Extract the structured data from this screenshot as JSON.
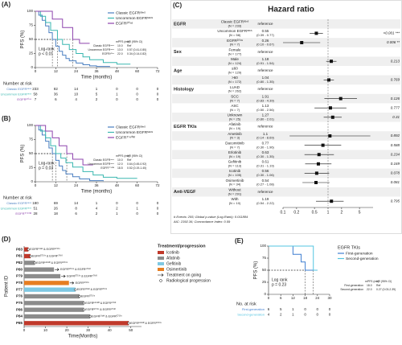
{
  "chart_data": [
    {
      "type": "km",
      "panel": "(A)",
      "ylabel": "PFS (%)",
      "xlabel": "Time (months)",
      "xlim": [
        0,
        72
      ],
      "xticks": [
        0,
        12,
        24,
        36,
        48,
        60,
        72
      ],
      "ylim": [
        0,
        100
      ],
      "yticks": [
        0,
        25,
        50,
        75,
        100
      ],
      "legend": "upper right",
      "median_level": 50,
      "annotation": [
        "Log-rank",
        "p < 0.01"
      ],
      "table_columns": [
        "mPFS (mo)",
        "HR (95% CI)"
      ],
      "risk_title": "Number at risk",
      "series": [
        {
          "name": "Classic EGFRˢᵉⁿˢ",
          "color": "#4a7fc1",
          "x": [
            0,
            2,
            4,
            6,
            8,
            10,
            12,
            14,
            16,
            18,
            20,
            24,
            28,
            32,
            36,
            44
          ],
          "values": [
            100,
            93,
            84,
            74,
            62,
            50,
            38,
            29,
            22,
            16,
            12,
            8,
            5,
            3,
            2,
            2
          ],
          "median": {
            "value": 10,
            "label": "10.0"
          },
          "hr": "Ref",
          "at_risk": [
            233,
            82,
            14,
            1,
            0,
            0,
            0
          ]
        },
        {
          "name": "Uncommon EGFRˢᵉⁿˢ",
          "color": "#3ab7b0",
          "x": [
            0,
            3,
            6,
            9,
            13,
            16,
            20,
            24,
            28,
            32,
            40,
            48,
            56
          ],
          "values": [
            100,
            91,
            80,
            66,
            50,
            41,
            32,
            25,
            19,
            14,
            9,
            6,
            6
          ],
          "median": {
            "value": 13,
            "label": "13.0"
          },
          "hr": "0.57 (0.41-0.80)",
          "at_risk": [
            58,
            36,
            10,
            5,
            1,
            0,
            0
          ]
        },
        {
          "name": "EGFR²⁰ⁱⁿˢ",
          "color": "#8e44ad",
          "x": [
            0,
            10,
            16,
            22,
            26,
            32
          ],
          "values": [
            100,
            86,
            71,
            50,
            43,
            43
          ],
          "median": {
            "value": 22,
            "label": "22.0"
          },
          "hr": "0.34 (0.14-0.82)",
          "at_risk": [
            7,
            6,
            4,
            2,
            0,
            0,
            0
          ]
        }
      ]
    },
    {
      "type": "km",
      "panel": "(B)",
      "ylabel": "PFS (%)",
      "xlabel": "Time (months)",
      "xlim": [
        0,
        72
      ],
      "xticks": [
        0,
        12,
        24,
        36,
        48,
        60,
        72
      ],
      "ylim": [
        0,
        100
      ],
      "yticks": [
        0,
        25,
        50,
        75,
        100
      ],
      "legend": "upper right",
      "median_level": 50,
      "annotation": [
        "Log-rank",
        "p = 0.03"
      ],
      "table_columns": [
        "mPFS (mo)",
        "HR (95% CI)"
      ],
      "risk_title": "Number at risk",
      "series": [
        {
          "name": "Classic EGFRˢᵉⁿˢ",
          "color": "#4a7fc1",
          "x": [
            0,
            2,
            4,
            6,
            8,
            10,
            12,
            14,
            16,
            18,
            22,
            26,
            32,
            40
          ],
          "values": [
            100,
            92,
            83,
            72,
            60,
            50,
            38,
            28,
            20,
            14,
            9,
            5,
            2,
            1
          ],
          "median": {
            "value": 10,
            "label": "10.0"
          },
          "hr": "Ref",
          "at_risk": [
            180,
            69,
            14,
            1,
            0,
            0,
            0
          ]
        },
        {
          "name": "Uncommon EGFRˢᵉⁿˢ",
          "color": "#3ab7b0",
          "x": [
            0,
            3,
            6,
            9,
            12,
            15,
            18,
            22,
            28,
            34,
            40,
            48,
            60
          ],
          "values": [
            100,
            90,
            78,
            64,
            50,
            42,
            34,
            26,
            18,
            12,
            8,
            6,
            6
          ],
          "median": {
            "value": 12,
            "label": "12.0"
          },
          "hr": "0.64 (0.45-0.92)",
          "at_risk": [
            51,
            26,
            8,
            4,
            2,
            1,
            0
          ]
        },
        {
          "name": "EGFRᵀ⁷⁹⁰ᴹ",
          "color": "#8e44ad",
          "x": [
            0,
            6,
            10,
            14,
            18.5,
            22,
            28,
            34
          ],
          "values": [
            100,
            90,
            78,
            64,
            50,
            40,
            30,
            30
          ],
          "median": {
            "value": 18.5,
            "label": "18.5"
          },
          "hr": "0.52 (0.19-1.40)",
          "at_risk": [
            28,
            18,
            6,
            2,
            1,
            0,
            0
          ]
        }
      ]
    },
    {
      "type": "forest",
      "panel": "(C)",
      "title": "Hazard ratio",
      "log": true,
      "xlim": [
        0.1,
        10
      ],
      "xticks": [
        0.1,
        0.2,
        0.5,
        1,
        2,
        5
      ],
      "reference_line": 1,
      "footer": [
        "# Events: 255; Global p-value (Log-Rank): 0.011884",
        "AIC: 2392.36; Concordance Index: 0.59"
      ],
      "groups": [
        {
          "name": "EGFR",
          "rows": [
            {
              "label": "Classic EGFRˢᵉⁿˢ",
              "n": "(N = 233)",
              "ref": "reference"
            },
            {
              "label": "Uncommon EGFRˢᵉⁿˢ",
              "n": "(N = 58)",
              "hr": 0.55,
              "ci": [
                0.39,
                0.77
              ],
              "ci_label": "(0.39 - 0.77)",
              "p": "<0.001 ***"
            },
            {
              "label": "EGFR²⁰ⁱⁿˢ",
              "n": "(N = 7)",
              "hr": 0.26,
              "ci": [
                0.1,
                0.67
              ],
              "ci_label": "(0.10 - 0.67)",
              "p": "0.006 **"
            }
          ]
        },
        {
          "name": "Sex",
          "rows": [
            {
              "label": "Female",
              "n": "(N = 177)",
              "ref": "reference"
            },
            {
              "label": "Male",
              "n": "(N = 124)",
              "hr": 1.18,
              "ci": [
                0.91,
                1.54
              ],
              "ci_label": "(0.91 - 1.54)",
              "p": "0.213"
            }
          ]
        },
        {
          "name": "Age",
          "rows": [
            {
              "label": "≤60",
              "n": "(N = 129)",
              "ref": "reference"
            },
            {
              "label": ">60",
              "n": "(N = 172)",
              "hr": 1.04,
              "ci": [
                0.8,
                1.35
              ],
              "ci_label": "(0.80 - 1.35)",
              "p": "0.769"
            }
          ]
        },
        {
          "name": "Histology",
          "rows": [
            {
              "label": "LUAD",
              "n": "(N = 262)",
              "ref": "reference"
            },
            {
              "label": "SCC",
              "n": "(N = 7)",
              "hr": 1.91,
              "ci": [
                0.83,
                4.39
              ],
              "ci_label": "(0.83 - 4.39)",
              "p": "0.126"
            },
            {
              "label": "ASC",
              "n": "(N = 7)",
              "hr": 1.13,
              "ci": [
                0.5,
                2.56
              ],
              "ci_label": "(0.50 - 2.56)",
              "p": "0.777"
            },
            {
              "label": "Unknown",
              "n": "(N = 25)",
              "hr": 1.27,
              "ci": [
                0.8,
                2.01
              ],
              "ci_label": "(0.80 - 2.01)",
              "p": "0.31"
            }
          ]
        },
        {
          "name": "EGFR TKIs",
          "rows": [
            {
              "label": "Afatinib",
              "n": "(N = 19)",
              "ref": "reference"
            },
            {
              "label": "Ametinib",
              "n": "(N = 3)",
              "hr": 1.1,
              "ci": [
                0.14,
                8.69
              ],
              "ci_label": "(0.14 - 8.69)",
              "p": "0.892"
            },
            {
              "label": "Dacomitinib",
              "n": "(N = 7)",
              "hr": 0.77,
              "ci": [
                0.3,
                1.96
              ],
              "ci_label": "(0.30 - 1.96)",
              "p": "0.588"
            },
            {
              "label": "Erlotinib",
              "n": "(N = 19)",
              "hr": 0.63,
              "ci": [
                0.3,
                1.35
              ],
              "ci_label": "(0.30 - 1.35)",
              "p": "0.234"
            },
            {
              "label": "Gefitinib",
              "n": "(N = 113)",
              "hr": 0.61,
              "ci": [
                0.31,
                1.19
              ],
              "ci_label": "(0.31 - 1.19)",
              "p": "0.169"
            },
            {
              "label": "Icotinib",
              "n": "(N = 105)",
              "hr": 0.56,
              "ci": [
                0.3,
                1.06
              ],
              "ci_label": "(0.30 - 1.06)",
              "p": "0.078"
            },
            {
              "label": "Osimertinib",
              "n": "(N = 34)",
              "hr": 0.54,
              "ci": [
                0.27,
                1.08
              ],
              "ci_label": "(0.27 - 1.08)",
              "p": "0.081"
            }
          ]
        },
        {
          "name": "Anti-VEGF",
          "rows": [
            {
              "label": "Without",
              "n": "(N = 291)",
              "ref": "reference"
            },
            {
              "label": "With",
              "n": "(N = 10)",
              "hr": 1.19,
              "ci": [
                0.54,
                2.22
              ],
              "ci_label": "(0.54 - 2.22)",
              "p": "0.795"
            }
          ]
        }
      ]
    },
    {
      "type": "swimmer",
      "panel": "(D)",
      "ylabel": "Patient ID",
      "xlabel": "Time(Months)",
      "xlim": [
        0,
        55
      ],
      "xticks": [
        0,
        10,
        20,
        30,
        40,
        50
      ],
      "legend_title": "Treatment/progression",
      "ongoing_label": "Treatment on going",
      "progression_label": "Radiological progression",
      "categories": [
        "P83",
        "P81",
        "P82",
        "P80",
        "P79",
        "P78",
        "P77",
        "P76",
        "P75",
        "P86",
        "P84",
        "P85"
      ],
      "labels": [
        "EGFR¹⁹ᵈᵉˡ & EGFRᴳ⁷¹⁹ˣ",
        "EGFRᴳ⁷¹⁹ˣ & EGFRˢ⁷⁶⁸ᴵ",
        "EGFRᴸ⁸⁵⁸ᴿ & EGFRᴳ⁷¹⁹ˣ",
        "EGFRᴳ⁷¹⁹ˣ & EGFRˢ⁷⁶⁸ᴵ",
        "EGFRᴳ⁷¹⁹ˣ & EGFRˢ⁷⁶⁸ᴵ",
        "EGFRᴳ⁷¹⁹ˣ",
        "EGFR¹⁹ᵈᵉˡ & EGFRᴳ⁷¹⁹ˣ",
        "EGFRᴳ⁷¹⁹ˣ",
        "EGFRᴸ⁸⁵⁸ᴿ & EGFRˢ⁷⁶⁸ᴵ",
        "EGFRᴳ⁷¹⁹ˣ & EGFRˢ⁷⁶⁸ᴵ",
        "EGFR¹⁹ᵈᵉˡ & EGFRᴳ⁷¹⁹ˣ",
        "EGFRᴸ⁸⁵⁸ᴿ & EGFRᴳ⁷¹⁹ˣ"
      ],
      "series": [
        {
          "name": "Icotinib",
          "color": "#c0392b",
          "values": [
            2,
            3,
            null,
            null,
            null,
            null,
            null,
            null,
            null,
            null,
            null,
            49
          ]
        },
        {
          "name": "Afatinib",
          "color": "#8c8c8c",
          "values": [
            null,
            null,
            5,
            14,
            17,
            null,
            null,
            26,
            28,
            28,
            31,
            null
          ]
        },
        {
          "name": "Gefitinib",
          "color": "#7ec8e3",
          "values": [
            null,
            null,
            null,
            null,
            null,
            null,
            24,
            null,
            null,
            null,
            null,
            null
          ]
        },
        {
          "name": "Osimertinib",
          "color": "#e67e22",
          "values": [
            null,
            null,
            null,
            null,
            null,
            21,
            null,
            null,
            null,
            null,
            null,
            null
          ]
        }
      ],
      "ongoing": [
        false,
        false,
        false,
        true,
        true,
        true,
        false,
        false,
        false,
        false,
        false,
        false
      ],
      "progression": [
        2,
        3,
        5,
        null,
        null,
        null,
        24,
        26,
        28,
        28,
        31,
        49
      ]
    },
    {
      "type": "km",
      "panel": "(E)",
      "ylabel": "PFS (%)",
      "xlim": [
        0,
        30
      ],
      "xticks": [
        0,
        6,
        12,
        18,
        24,
        30
      ],
      "ylim": [
        0,
        100
      ],
      "yticks": [
        0,
        25,
        50,
        75,
        100
      ],
      "legend": "right",
      "legend_title": "EGFR TKIs",
      "median_level": 50,
      "annotation": [
        "Log rank",
        "p = 0.23"
      ],
      "table_columns": [
        "mPFS (mo)",
        "HR (95% CI)"
      ],
      "risk_title": "No. at risk",
      "series": [
        {
          "name": "First-generation",
          "color": "#3f7fd1",
          "x": [
            0,
            12,
            16,
            18,
            24
          ],
          "values": [
            100,
            83,
            67,
            50,
            50
          ],
          "median": {
            "value": 18,
            "label": "18.0"
          },
          "hr": "Ref",
          "at_risk": [
            6,
            5,
            1,
            0,
            0,
            0
          ]
        },
        {
          "name": "Second-generation",
          "color": "#53c4e0",
          "x": [
            0,
            22,
            24
          ],
          "values": [
            100,
            50,
            50
          ],
          "median": {
            "value": 22,
            "label": "22.0"
          },
          "hr": "0.27 (0.03-2.39)",
          "at_risk": [
            4,
            2,
            1,
            0,
            0,
            0
          ]
        }
      ]
    }
  ]
}
